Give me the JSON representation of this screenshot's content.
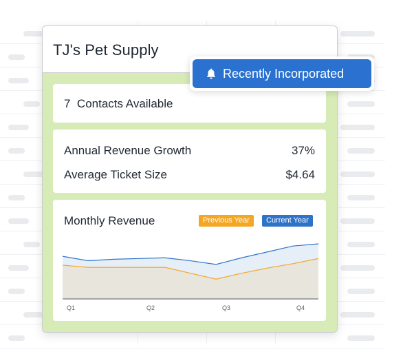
{
  "company": {
    "name": "TJ's Pet Supply"
  },
  "notification": {
    "label": "Recently Incorporated",
    "icon": "bell-icon",
    "color": "#2a71d0"
  },
  "contacts": {
    "count": "7",
    "label": "Contacts Available"
  },
  "stats": [
    {
      "label": "Annual Revenue Growth",
      "value": "37%"
    },
    {
      "label": "Average Ticket Size",
      "value": "$4.64"
    }
  ],
  "chart_data": {
    "type": "area",
    "title": "Monthly Revenue",
    "categories": [
      "Q1",
      "Q2",
      "Q3",
      "Q4"
    ],
    "x": [
      0,
      1,
      2,
      3,
      4,
      5,
      6,
      7,
      8,
      9,
      10
    ],
    "series": [
      {
        "name": "Previous Year",
        "color": "#f5a623",
        "values": [
          46,
          43,
          43,
          43,
          43,
          35,
          27,
          35,
          42,
          48,
          55
        ]
      },
      {
        "name": "Current Year",
        "color": "#2f73c9",
        "values": [
          58,
          52,
          54,
          55,
          56,
          52,
          47,
          56,
          64,
          72,
          75
        ]
      }
    ],
    "ylim": [
      0,
      90
    ],
    "grid": false,
    "legend": "top-right"
  }
}
